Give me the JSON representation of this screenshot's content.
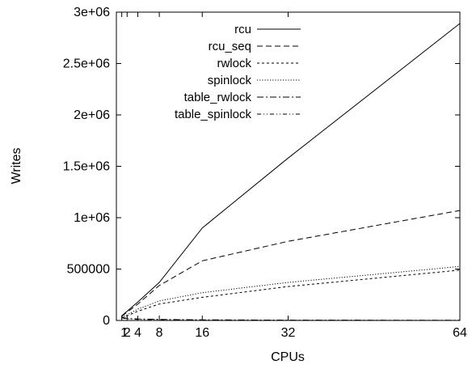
{
  "chart_data": {
    "type": "line",
    "title": "",
    "xlabel": "CPUs",
    "ylabel": "Writes",
    "x": [
      1,
      2,
      4,
      8,
      16,
      32,
      64
    ],
    "xticks": [
      1,
      2,
      4,
      8,
      16,
      32,
      64
    ],
    "xtick_labels": [
      "1",
      "2",
      "4",
      "8",
      "16",
      "32",
      "64"
    ],
    "xlim": [
      0,
      64
    ],
    "yticks": [
      0,
      500000,
      1000000,
      1500000,
      2000000,
      2500000,
      3000000
    ],
    "ytick_labels": [
      "0",
      "500000",
      "1e+06",
      "1.5e+06",
      "2e+06",
      "2.5e+06",
      "3e+06"
    ],
    "ylim": [
      0,
      3000000
    ],
    "grid": false,
    "legend_position": "top-right",
    "series": [
      {
        "name": "rcu",
        "dash": "",
        "values": [
          45000,
          90000,
          180000,
          370000,
          900000,
          1580000,
          2890000
        ]
      },
      {
        "name": "rcu_seq",
        "dash": "7,4",
        "values": [
          40000,
          80000,
          160000,
          340000,
          580000,
          770000,
          1070000
        ]
      },
      {
        "name": "rwlock",
        "dash": "3,3",
        "values": [
          25000,
          45000,
          90000,
          160000,
          225000,
          330000,
          490000
        ]
      },
      {
        "name": "spinlock",
        "dash": "1.2,2",
        "values": [
          30000,
          55000,
          110000,
          190000,
          270000,
          370000,
          525000
        ]
      },
      {
        "name": "table_rwlock",
        "dash": "8,3,2,3",
        "values": [
          30000,
          20000,
          15000,
          10000,
          6000,
          3000,
          1500
        ]
      },
      {
        "name": "table_spinlock",
        "dash": "5,3,1,3,1,3",
        "values": [
          25000,
          15000,
          10000,
          7000,
          4000,
          2000,
          1000
        ]
      }
    ]
  }
}
